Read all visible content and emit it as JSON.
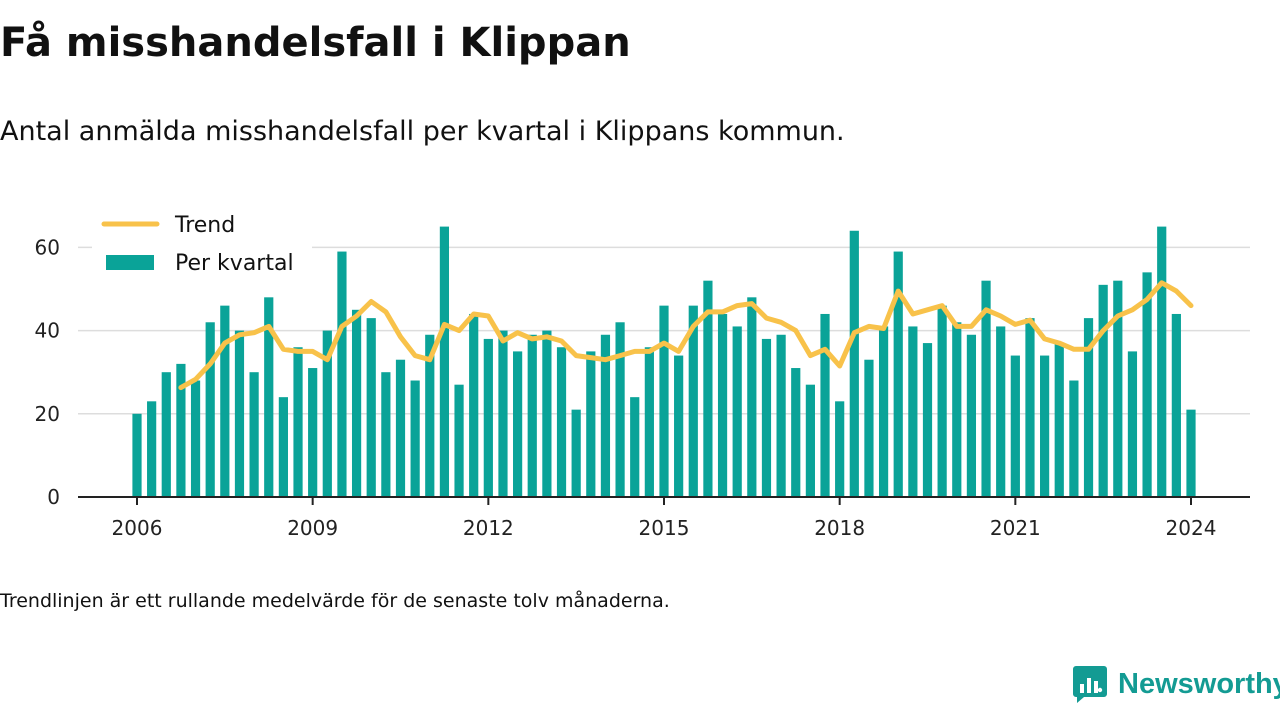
{
  "title": "Få misshandelsfall i Klippan",
  "subtitle": "Antal anmälda misshandelsfall per kvartal i Klippans kommun.",
  "footnote": "Trendlinjen är ett rullande medelvärde för de senaste tolv månaderna.",
  "brand": "Newsworthy",
  "colors": {
    "bar": "#0aa398",
    "trend": "#f8c24a",
    "grid": "#dddddd",
    "axis": "#222222",
    "brand": "#139b93"
  },
  "chart_data": {
    "type": "bar",
    "x_start": 2006,
    "x_step": 0.25,
    "xticks": [
      "2006",
      "2009",
      "2012",
      "2015",
      "2018",
      "2021",
      "2024"
    ],
    "yticks": [
      "0",
      "20",
      "40",
      "60"
    ],
    "ylim": [
      0,
      70
    ],
    "legend_placement": "top-left",
    "grid": true,
    "series": [
      {
        "name": "Per kvartal",
        "type": "bar",
        "values": [
          20,
          23,
          30,
          32,
          28,
          42,
          46,
          40,
          30,
          48,
          24,
          36,
          31,
          40,
          59,
          45,
          43,
          30,
          33,
          28,
          39,
          65,
          27,
          44,
          38,
          40,
          35,
          39,
          40,
          36,
          21,
          35,
          39,
          42,
          24,
          36,
          46,
          34,
          46,
          52,
          44,
          41,
          48,
          38,
          39,
          31,
          27,
          44,
          23,
          64,
          33,
          41,
          59,
          41,
          37,
          46,
          42,
          39,
          52,
          41,
          34,
          43,
          34,
          37,
          28,
          43,
          51,
          52,
          35,
          54,
          65,
          44,
          21
        ]
      },
      {
        "name": "Trend",
        "type": "line",
        "values": [
          null,
          null,
          null,
          26.3,
          28.3,
          32.0,
          37.0,
          39.0,
          39.5,
          41.0,
          35.5,
          35.0,
          35.0,
          33.0,
          41.0,
          43.5,
          47.0,
          44.5,
          38.5,
          34.0,
          33.0,
          41.5,
          40.0,
          44.0,
          43.5,
          37.5,
          39.5,
          38.0,
          38.5,
          37.5,
          34.0,
          33.5,
          33.0,
          34.0,
          35.0,
          35.0,
          37.0,
          35.0,
          41.0,
          44.5,
          44.5,
          46.0,
          46.5,
          43.0,
          42.0,
          40.0,
          34.0,
          35.5,
          31.5,
          39.5,
          41.0,
          40.5,
          49.5,
          44.0,
          45.0,
          46.0,
          41.0,
          41.0,
          45.0,
          43.5,
          41.5,
          42.5,
          38.0,
          37.0,
          35.5,
          35.5,
          40.0,
          43.5,
          45.0,
          47.5,
          51.5,
          49.5,
          46.0
        ]
      }
    ]
  }
}
